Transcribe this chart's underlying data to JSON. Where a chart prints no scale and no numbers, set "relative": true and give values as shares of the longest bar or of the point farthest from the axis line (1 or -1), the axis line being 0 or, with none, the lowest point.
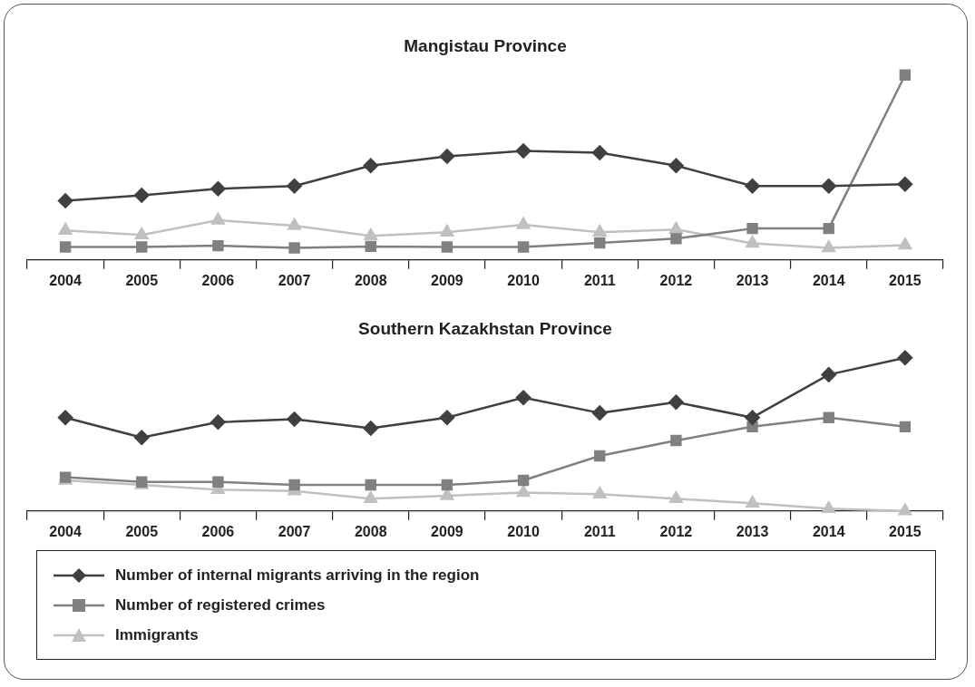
{
  "chart_data": [
    {
      "type": "line",
      "title": "Mangistau Province",
      "relative": true,
      "legend": false,
      "grid": false,
      "categories": [
        "2004",
        "2005",
        "2006",
        "2007",
        "2008",
        "2009",
        "2010",
        "2011",
        "2012",
        "2013",
        "2014",
        "2015"
      ],
      "series": [
        {
          "color": "#404040",
          "marker": "diamond",
          "values": [
            0.32,
            0.35,
            0.385,
            0.4,
            0.51,
            0.56,
            0.59,
            0.58,
            0.51,
            0.4,
            0.4,
            0.41
          ]
        },
        {
          "color": "#808080",
          "marker": "square",
          "values": [
            0.07,
            0.07,
            0.077,
            0.065,
            0.073,
            0.07,
            0.07,
            0.092,
            0.115,
            0.17,
            0.17,
            1
          ]
        },
        {
          "color": "#c0c0c0",
          "marker": "triangle",
          "values": [
            0.16,
            0.135,
            0.215,
            0.185,
            0.13,
            0.15,
            0.19,
            0.15,
            0.165,
            0.09,
            0.065,
            0.08
          ]
        }
      ]
    },
    {
      "type": "line",
      "title": "Southern Kazakhstan Province",
      "relative": true,
      "legend": "bottom",
      "grid": false,
      "categories": [
        "2004",
        "2005",
        "2006",
        "2007",
        "2008",
        "2009",
        "2010",
        "2011",
        "2012",
        "2013",
        "2014",
        "2015"
      ],
      "series": [
        {
          "name": "Number of internal migrants arriving in the region",
          "color": "#404040",
          "marker": "diamond",
          "values": [
            0.61,
            0.48,
            0.58,
            0.6,
            0.54,
            0.61,
            0.74,
            0.64,
            0.71,
            0.61,
            0.89,
            1
          ]
        },
        {
          "name": "Number of registered crimes",
          "color": "#808080",
          "marker": "square",
          "values": [
            0.22,
            0.19,
            0.19,
            0.17,
            0.17,
            0.17,
            0.2,
            0.36,
            0.46,
            0.55,
            0.61,
            0.55
          ]
        },
        {
          "name": "Immigrants",
          "color": "#c0c0c0",
          "marker": "triangle",
          "values": [
            0.2,
            0.17,
            0.14,
            0.13,
            0.08,
            0.1,
            0.12,
            0.11,
            0.08,
            0.05,
            0.015,
            0
          ]
        }
      ]
    }
  ]
}
